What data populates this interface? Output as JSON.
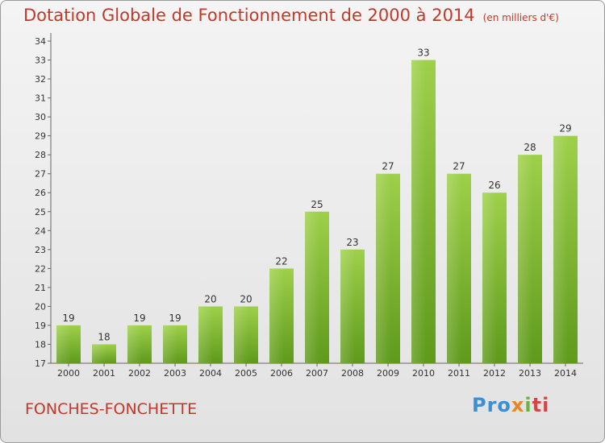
{
  "title": "Dotation Globale de Fonctionnement de 2000 à 2014",
  "unit_label": "(en milliers d'€)",
  "commune": "FONCHES-FONCHETTE",
  "logo": {
    "p1": "Pro",
    "p2": "x",
    "p3": "i",
    "p4": "ti"
  },
  "colors": {
    "bar_top": "#9ed04a",
    "bar_bottom": "#5f9a1c",
    "title": "#c0392b"
  },
  "chart_data": {
    "type": "bar",
    "categories": [
      "2000",
      "2001",
      "2002",
      "2003",
      "2004",
      "2005",
      "2006",
      "2007",
      "2008",
      "2009",
      "2010",
      "2011",
      "2012",
      "2013",
      "2014"
    ],
    "values": [
      19,
      18,
      19,
      19,
      20,
      20,
      22,
      25,
      23,
      27,
      33,
      27,
      26,
      28,
      29
    ],
    "ylim": [
      17,
      34
    ],
    "yticks": [
      17,
      18,
      19,
      20,
      21,
      22,
      23,
      24,
      25,
      26,
      27,
      28,
      29,
      30,
      31,
      32,
      33,
      34
    ],
    "grid": false,
    "data_labels": true
  }
}
